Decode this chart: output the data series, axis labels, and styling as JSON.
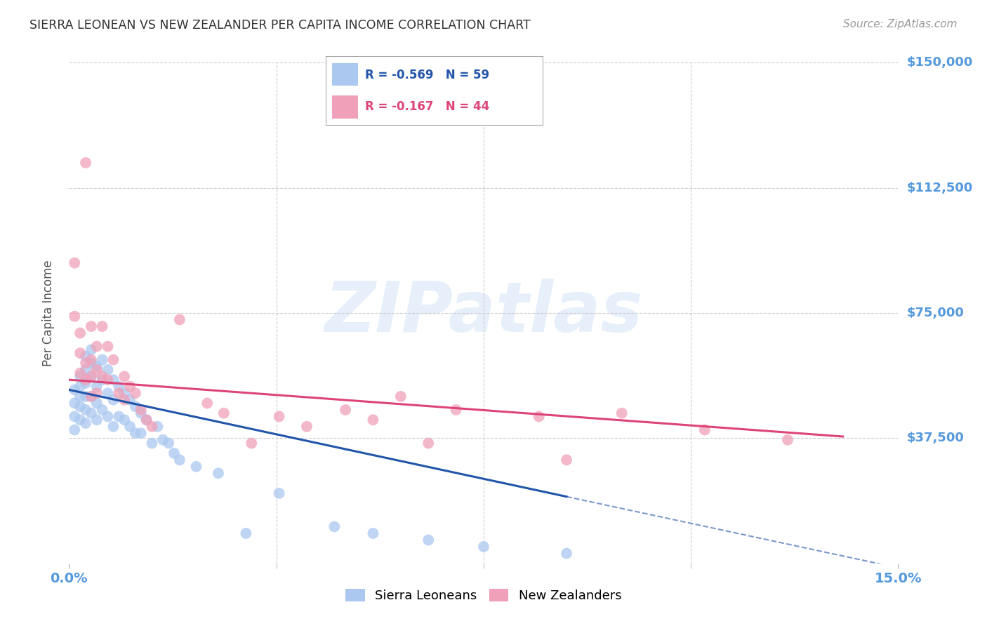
{
  "title": "SIERRA LEONEAN VS NEW ZEALANDER PER CAPITA INCOME CORRELATION CHART",
  "source": "Source: ZipAtlas.com",
  "xlabel_color": "#5599dd",
  "ylabel": "Per Capita Income",
  "xlim": [
    0.0,
    0.15
  ],
  "ylim": [
    0,
    150000
  ],
  "yticks": [
    0,
    37500,
    75000,
    112500,
    150000
  ],
  "ytick_labels": [
    "",
    "$37,500",
    "$75,000",
    "$112,500",
    "$150,000"
  ],
  "xtick_labels": [
    "0.0%",
    "15.0%"
  ],
  "xticks": [
    0.0,
    0.15
  ],
  "grid_color": "#cccccc",
  "background_color": "#ffffff",
  "blue_color": "#aac8f0",
  "pink_color": "#f0a0b8",
  "blue_line_color": "#2255aa",
  "pink_line_color": "#dd4477",
  "legend_R_blue": "-0.569",
  "legend_N_blue": "59",
  "legend_R_pink": "-0.167",
  "legend_N_pink": "44",
  "watermark": "ZIPatlas",
  "legend_label_blue": "Sierra Leoneans",
  "legend_label_pink": "New Zealanders",
  "blue_x": [
    0.001,
    0.001,
    0.001,
    0.001,
    0.002,
    0.002,
    0.002,
    0.002,
    0.002,
    0.003,
    0.003,
    0.003,
    0.003,
    0.003,
    0.003,
    0.004,
    0.004,
    0.004,
    0.004,
    0.004,
    0.005,
    0.005,
    0.005,
    0.005,
    0.006,
    0.006,
    0.006,
    0.007,
    0.007,
    0.007,
    0.008,
    0.008,
    0.008,
    0.009,
    0.009,
    0.01,
    0.01,
    0.011,
    0.011,
    0.012,
    0.012,
    0.013,
    0.013,
    0.014,
    0.015,
    0.016,
    0.017,
    0.018,
    0.019,
    0.02,
    0.023,
    0.027,
    0.032,
    0.038,
    0.048,
    0.055,
    0.065,
    0.075,
    0.09
  ],
  "blue_y": [
    52000,
    48000,
    44000,
    40000,
    56000,
    53000,
    50000,
    47000,
    43000,
    62000,
    58000,
    54000,
    50000,
    46000,
    42000,
    64000,
    60000,
    56000,
    50000,
    45000,
    59000,
    53000,
    48000,
    43000,
    61000,
    55000,
    46000,
    58000,
    51000,
    44000,
    55000,
    49000,
    41000,
    53000,
    44000,
    51000,
    43000,
    49000,
    41000,
    47000,
    39000,
    45000,
    39000,
    43000,
    36000,
    41000,
    37000,
    36000,
    33000,
    31000,
    29000,
    27000,
    9000,
    21000,
    11000,
    9000,
    7000,
    5000,
    3000
  ],
  "pink_x": [
    0.001,
    0.001,
    0.002,
    0.002,
    0.002,
    0.003,
    0.003,
    0.003,
    0.004,
    0.004,
    0.004,
    0.004,
    0.005,
    0.005,
    0.005,
    0.006,
    0.006,
    0.007,
    0.007,
    0.008,
    0.009,
    0.01,
    0.01,
    0.011,
    0.012,
    0.013,
    0.014,
    0.015,
    0.02,
    0.025,
    0.028,
    0.033,
    0.038,
    0.043,
    0.05,
    0.055,
    0.06,
    0.065,
    0.07,
    0.085,
    0.09,
    0.1,
    0.115,
    0.13
  ],
  "pink_y": [
    90000,
    74000,
    69000,
    63000,
    57000,
    120000,
    60000,
    55000,
    71000,
    61000,
    56000,
    50000,
    65000,
    58000,
    51000,
    71000,
    56000,
    65000,
    55000,
    61000,
    51000,
    56000,
    49000,
    53000,
    51000,
    46000,
    43000,
    41000,
    73000,
    48000,
    45000,
    36000,
    44000,
    41000,
    46000,
    43000,
    50000,
    36000,
    46000,
    44000,
    31000,
    45000,
    40000,
    37000
  ]
}
